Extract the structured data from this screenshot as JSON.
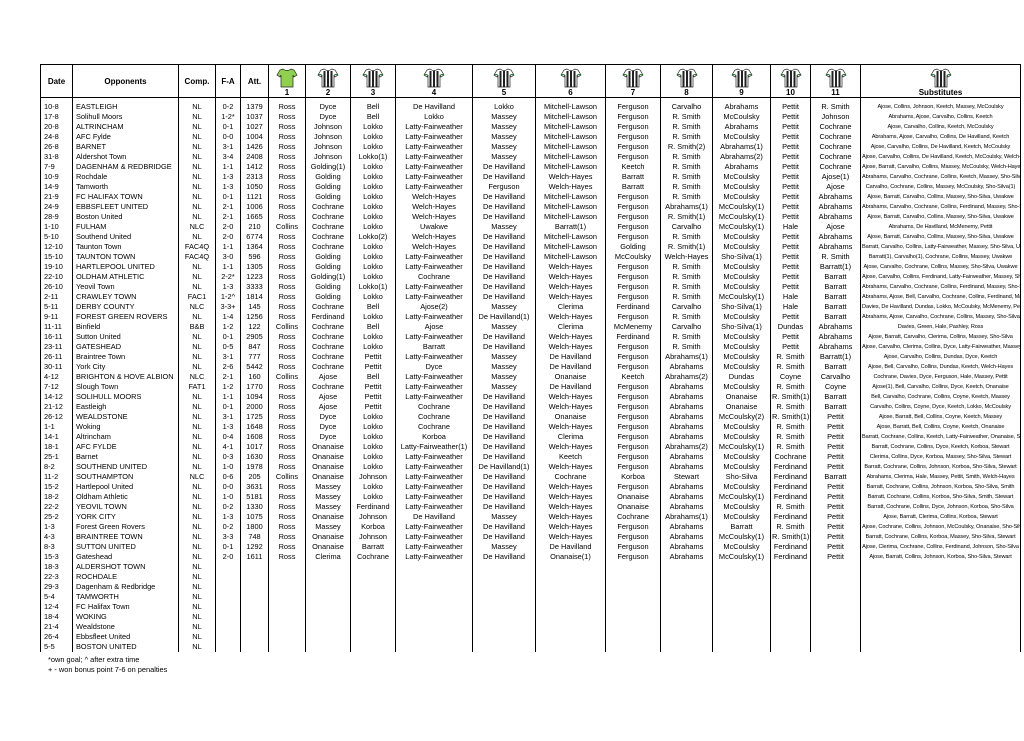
{
  "table": {
    "headers": [
      "Date",
      "Opponents",
      "Comp.",
      "F-A",
      "Att.",
      "1",
      "2",
      "3",
      "4",
      "5",
      "6",
      "7",
      "8",
      "9",
      "10",
      "11",
      "Substitutes"
    ],
    "rows": [
      [
        "10-8",
        "EASTLEIGH",
        "NL",
        "0-2",
        "1379",
        "Ross",
        "Dyce",
        "Bell",
        "De Havilland",
        "Lokko",
        "Mitchell-Lawson",
        "Ferguson",
        "Carvalho",
        "Abrahams",
        "Pettit",
        "R. Smith",
        "Ajose, Collins, Johnson, Keetch, Massey, McCoulsky"
      ],
      [
        "17-8",
        "Solihull Moors",
        "NL",
        "1-2*",
        "1037",
        "Ross",
        "Dyce",
        "Bell",
        "Lokko",
        "Massey",
        "Mitchell-Lawson",
        "Ferguson",
        "R. Smith",
        "McCoulsky",
        "Pettit",
        "Johnson",
        "Abrahams, Ajose, Carvalho, Collins, Keetch"
      ],
      [
        "20-8",
        "ALTRINCHAM",
        "NL",
        "0-1",
        "1027",
        "Ross",
        "Johnson",
        "Lokko",
        "Latty-Fairweather",
        "Massey",
        "Mitchell-Lawson",
        "Ferguson",
        "R. Smith",
        "Abrahams",
        "Pettit",
        "Cochrane",
        "Ajose, Carvalho, Collins, Keetch, McCoulsky"
      ],
      [
        "24-8",
        "AFC Fylde",
        "NL",
        "0-0",
        "1004",
        "Ross",
        "Johnson",
        "Lokko",
        "Latty-Fairweather",
        "Massey",
        "Mitchell-Lawson",
        "Ferguson",
        "R. Smith",
        "McCoulsky",
        "Pettit",
        "Cochrane",
        "Abrahams, Ajose, Carvalho, Collins, De Havilland, Keetch"
      ],
      [
        "26-8",
        "BARNET",
        "NL",
        "3-1",
        "1426",
        "Ross",
        "Johnson",
        "Lokko",
        "Latty-Fairweather",
        "Massey",
        "Mitchell-Lawson",
        "Ferguson",
        "R. Smith(2)",
        "Abrahams(1)",
        "Pettit",
        "Cochrane",
        "Ajose, Carvalho, Collins, De Havilland, Keetch, McCoulsky"
      ],
      [
        "31-8",
        "Aldershot Town",
        "NL",
        "3-4",
        "2408",
        "Ross",
        "Johnson",
        "Lokko(1)",
        "Latty-Fairweather",
        "Massey",
        "Mitchell-Lawson",
        "Ferguson",
        "R. Smith",
        "Abrahams(2)",
        "Pettit",
        "Cochrane",
        "Ajose, Carvalho, Collins, De Havilland, Keetch, McCoulsky, Welch-Hayes"
      ],
      [
        "7-9",
        "DAGENHAM & REDBRIDGE",
        "NL",
        "1-1",
        "1412",
        "Ross",
        "Golding(1)",
        "Lokko",
        "Latty-Fairweather",
        "De Havilland",
        "Mitchell-Lawson",
        "Keetch",
        "R. Smith",
        "Abrahams",
        "Pettit",
        "Cochrane",
        "Ajose, Barratt, Carvalho, Collins, Massey, McCoulsky, Welch-Hayes"
      ],
      [
        "10-9",
        "Rochdale",
        "NL",
        "1-3",
        "2313",
        "Ross",
        "Golding",
        "Lokko",
        "Latty-Fairweather",
        "De Havilland",
        "Welch-Hayes",
        "Barratt",
        "R. Smith",
        "McCoulsky",
        "Pettit",
        "Ajose(1)",
        "Abrahams, Carvalho, Cochrane, Collins, Keetch, Massey, Sho-Silva"
      ],
      [
        "14-9",
        "Tamworth",
        "NL",
        "1-3",
        "1050",
        "Ross",
        "Golding",
        "Lokko",
        "Latty-Fairweather",
        "Ferguson",
        "Welch-Hayes",
        "Barratt",
        "R. Smith",
        "McCoulsky",
        "Pettit",
        "Ajose",
        "Carvalho, Cochrane, Collins, Massey, McCoulsky, Sho-Silva(1)"
      ],
      [
        "21-9",
        "FC HALIFAX TOWN",
        "NL",
        "0-1",
        "1121",
        "Ross",
        "Golding",
        "Lokko",
        "Welch-Hayes",
        "De Havilland",
        "Mitchell-Lawson",
        "Ferguson",
        "R. Smith",
        "McCoulsky",
        "Pettit",
        "Abrahams",
        "Ajose, Barratt, Carvalho, Collins, Massey, Sho-Silva, Uwakwe"
      ],
      [
        "24-9",
        "EBBSFLEET UNITED",
        "NL",
        "2-1",
        "1006",
        "Ross",
        "Cochrane",
        "Lokko",
        "Welch-Hayes",
        "De Havilland",
        "Mitchell-Lawson",
        "Ferguson",
        "Abrahams(1)",
        "McCoulsky(1)",
        "Pettit",
        "Abrahams",
        "Abrahams, Carvalho, Cochrane, Collins, Ferdinand, Massey, Sho-Silva"
      ],
      [
        "28-9",
        "Boston United",
        "NL",
        "2-1",
        "1665",
        "Ross",
        "Cochrane",
        "Lokko",
        "Welch-Hayes",
        "De Havilland",
        "Mitchell-Lawson",
        "Ferguson",
        "R. Smith(1)",
        "McCoulsky(1)",
        "Pettit",
        "Abrahams",
        "Ajose, Barratt, Carvalho, Collins, Massey, Sho-Silva, Uwakwe"
      ],
      [
        "1-10",
        "FULHAM",
        "NLC",
        "2-0",
        "210",
        "Collins",
        "Cochrane",
        "Lokko",
        "Uwakwe",
        "Massey",
        "Barratt(1)",
        "Ferguson",
        "Carvalho",
        "McCoulsky(1)",
        "Hale",
        "Ajose",
        "Abrahams, De Havilland, McMenemy, Pettit"
      ],
      [
        "5-10",
        "Southend United",
        "NL",
        "2-0",
        "6774",
        "Ross",
        "Cochrane",
        "Lokko(2)",
        "Welch-Hayes",
        "De Havilland",
        "Mitchell-Lawson",
        "Ferguson",
        "R. Smith",
        "McCoulsky",
        "Pettit",
        "Abrahams",
        "Ajose, Barratt, Carvalho, Collins, Massey, Sho-Silva, Uwakwe"
      ],
      [
        "12-10",
        "Taunton Town",
        "FAC4Q",
        "1-1",
        "1364",
        "Ross",
        "Cochrane",
        "Lokko",
        "Welch-Hayes",
        "De Havilland",
        "Mitchell-Lawson",
        "Golding",
        "R. Smith(1)",
        "McCoulsky",
        "Pettit",
        "Abrahams",
        "Barratt, Carvalho, Collins, Latty-Fairweather, Massey, Sho-Silva, Uwakwe"
      ],
      [
        "15-10",
        "TAUNTON TOWN",
        "FAC4Q",
        "3-0",
        "596",
        "Ross",
        "Golding",
        "Lokko",
        "Latty-Fairweather",
        "De Havilland",
        "Mitchell-Lawson",
        "McCoulsky",
        "Welch-Hayes",
        "Sho-Silva(1)",
        "Pettit",
        "R. Smith",
        "Barratt(1), Carvalho(1), Cochrane, Collins, Massey, Uwakwe"
      ],
      [
        "19-10",
        "HARTLEPOOL UNITED",
        "NL",
        "1-1",
        "1305",
        "Ross",
        "Golding",
        "Lokko",
        "Latty-Fairweather",
        "De Havilland",
        "Welch-Hayes",
        "Ferguson",
        "R. Smith",
        "McCoulsky",
        "Pettit",
        "Barratt(1)",
        "Ajose, Carvalho, Cochrane, Collins, Massey, Sho-Silva, Uwakwe"
      ],
      [
        "22-10",
        "OLDHAM ATHLETIC",
        "NL",
        "2-2*",
        "1223",
        "Ross",
        "Golding(1)",
        "Lokko",
        "Cochrane",
        "De Havilland",
        "Welch-Hayes",
        "Ferguson",
        "R. Smith",
        "McCoulsky",
        "Pettit",
        "Barratt",
        "Ajose, Carvalho, Collins, Ferdinand, Latty-Fairweather, Massey, Sho-Silva"
      ],
      [
        "26-10",
        "Yeovil Town",
        "NL",
        "1-3",
        "3333",
        "Ross",
        "Golding",
        "Lokko(1)",
        "Latty-Fairweather",
        "De Havilland",
        "Welch-Hayes",
        "Ferguson",
        "R. Smith",
        "McCoulsky",
        "Pettit",
        "Barratt",
        "Abrahams, Carvalho, Cochrane, Collins, Ferdinand, Massey, Sho-Silva"
      ],
      [
        "2-11",
        "CRAWLEY TOWN",
        "FAC1",
        "1-2^",
        "1814",
        "Ross",
        "Golding",
        "Lokko",
        "Latty-Fairweather",
        "De Havilland",
        "Welch-Hayes",
        "Ferguson",
        "R. Smith",
        "McCoulsky(1)",
        "Hale",
        "Barratt",
        "Abrahams, Ajose, Bell, Carvalho, Cochrane, Collins, Ferdinand, Massey, Sho-Silva"
      ],
      [
        "5-11",
        "DERBY COUNTY",
        "NLC",
        "3-3+",
        "145",
        "Ross",
        "Cochrane",
        "Bell",
        "Ajose(2)",
        "Massey",
        "Clerima",
        "Ferdinand",
        "Carvalho",
        "Sho-Silva(1)",
        "Hale",
        "Barratt",
        "Davies, De Havilland, Dundas, Lokko, McCoulsky, McMenemy, Pettit"
      ],
      [
        "9-11",
        "FOREST GREEN ROVERS",
        "NL",
        "1-4",
        "1256",
        "Ross",
        "Ferdinand",
        "Lokko",
        "Latty-Fairweather",
        "De Havilland(1)",
        "Welch-Hayes",
        "Ferguson",
        "R. Smith",
        "McCoulsky",
        "Pettit",
        "Barratt",
        "Abrahams, Ajose, Carvalho, Cochrane, Collins, Massey, Sho-Silva"
      ],
      [
        "11-11",
        "Binfield",
        "B&B",
        "1-2",
        "122",
        "Collins",
        "Cochrane",
        "Bell",
        "Ajose",
        "Massey",
        "Clerima",
        "McMenemy",
        "Carvalho",
        "Sho-Silva(1)",
        "Dundas",
        "Abrahams",
        "Davies, Green, Hale, Pashley, Ross"
      ],
      [
        "16-11",
        "Sutton United",
        "NL",
        "0-1",
        "2905",
        "Ross",
        "Cochrane",
        "Lokko",
        "Latty-Fairweather",
        "De Havilland",
        "Welch-Hayes",
        "Ferdinand",
        "R. Smith",
        "McCoulsky",
        "Pettit",
        "Abrahams",
        "Ajose, Barratt, Carvalho, Clerima, Collins, Massey, Sho-Silva"
      ],
      [
        "23-11",
        "GATESHEAD",
        "NL",
        "0-5",
        "847",
        "Ross",
        "Cochrane",
        "Lokko",
        "Barratt",
        "De Havilland",
        "Welch-Hayes",
        "Ferguson",
        "R. Smith",
        "McCoulsky",
        "Pettit",
        "Abrahams",
        "Ajose, Carvalho, Clerima, Collins, Dyce, Latty-Fairweather, Massey, Sho-Silva"
      ],
      [
        "26-11",
        "Braintree Town",
        "NL",
        "3-1",
        "777",
        "Ross",
        "Cochrane",
        "Pettit",
        "Latty-Fairweather",
        "Massey",
        "De Havilland",
        "Ferguson",
        "Abrahams(1)",
        "McCoulsky",
        "R. Smith",
        "Barratt(1)",
        "Ajose, Carvalho, Collins, Dundas, Dyce, Keetch"
      ],
      [
        "30-11",
        "York City",
        "NL",
        "2-6",
        "5442",
        "Ross",
        "Cochrane",
        "Pettit",
        "Dyce",
        "Massey",
        "De Havilland",
        "Ferguson",
        "Abrahams",
        "McCoulsky",
        "R. Smith",
        "Barratt",
        "Ajose, Bell, Carvalho, Collins, Dundas, Keetch, Welch-Hayes"
      ],
      [
        "4-12",
        "BRIGHTON & HOVE ALBION",
        "NLC",
        "2-1",
        "160",
        "Collins",
        "Ajose",
        "Bell",
        "Latty-Fairweather",
        "Massey",
        "Onanaise",
        "Keetch",
        "Abrahams(2)",
        "Dundas",
        "Coyne",
        "Carvalho",
        "Cochrane, Davies, Dyce, Ferguson, Hale, Massey, Pettit"
      ],
      [
        "7-12",
        "Slough Town",
        "FAT1",
        "1-2",
        "1770",
        "Ross",
        "Cochrane",
        "Pettit",
        "Latty-Fairweather",
        "Massey",
        "De Havilland",
        "Ferguson",
        "Abrahams",
        "McCoulsky",
        "R. Smith",
        "Coyne",
        "Ajose(1), Bell, Carvalho, Collins, Dyce, Keetch, Onanaise"
      ],
      [
        "14-12",
        "SOLIHULL MOORS",
        "NL",
        "1-1",
        "1094",
        "Ross",
        "Ajose",
        "Pettit",
        "Latty-Fairweather",
        "De Havilland",
        "Welch-Hayes",
        "Ferguson",
        "Abrahams",
        "Onanaise",
        "R. Smith(1)",
        "Barratt",
        "Bell, Carvalho, Cochrane, Collins, Coyne, Keetch, Massey"
      ],
      [
        "21-12",
        "Eastleigh",
        "NL",
        "0-1",
        "2000",
        "Ross",
        "Ajose",
        "Pettit",
        "Cochrane",
        "De Havilland",
        "Welch-Hayes",
        "Ferguson",
        "Abrahams",
        "Onanaise",
        "R. Smith",
        "Barratt",
        "Carvalho, Collins, Coyne, Dyce, Keetch, Lokko, McCoulsky"
      ],
      [
        "26-12",
        "WEALDSTONE",
        "NL",
        "3-1",
        "1725",
        "Ross",
        "Dyce",
        "Lokko",
        "Cochrane",
        "De Havilland",
        "Onanaise",
        "Ferguson",
        "Abrahams",
        "McCoulsky(2)",
        "R. Smith(1)",
        "Pettit",
        "Ajose, Barratt, Bell, Collins, Coyne, Keetch, Massey"
      ],
      [
        "1-1",
        "Woking",
        "NL",
        "1-3",
        "1648",
        "Ross",
        "Dyce",
        "Lokko",
        "Cochrane",
        "De Havilland",
        "Welch-Hayes",
        "Ferguson",
        "Abrahams",
        "McCoulsky",
        "R. Smith",
        "Pettit",
        "Ajose, Barratt, Bell, Collins, Coyne, Keetch, Onanaise"
      ],
      [
        "14-1",
        "Altrincham",
        "NL",
        "0-4",
        "1608",
        "Ross",
        "Dyce",
        "Lokko",
        "Korboa",
        "De Havilland",
        "Clerima",
        "Ferguson",
        "Abrahams",
        "McCoulsky",
        "R. Smith",
        "Pettit",
        "Barratt, Cochrane, Collins, Keetch, Latty-Fairweather, Onanaise, Stewart"
      ],
      [
        "18-1",
        "AFC FYLDE",
        "NL",
        "4-1",
        "1017",
        "Ross",
        "Onanaise",
        "Lokko",
        "Latty-Fairweather(1)",
        "De Havilland",
        "Welch-Hayes",
        "Ferguson",
        "Abrahams(2)",
        "McCoulsky(1)",
        "R. Smith",
        "Pettit",
        "Barratt, Cochrane, Collins, Dyce, Keetch, Korboa, Stewart"
      ],
      [
        "25-1",
        "Barnet",
        "NL",
        "0-3",
        "1630",
        "Ross",
        "Onanaise",
        "Lokko",
        "Latty-Fairweather",
        "De Havilland",
        "Keetch",
        "Ferguson",
        "Abrahams",
        "McCoulsky",
        "Cochrane",
        "Pettit",
        "Clerima, Collins, Dyce, Korboa, Massey, Sho-Silva, Stewart"
      ],
      [
        "8-2",
        "SOUTHEND UNITED",
        "NL",
        "1-0",
        "1978",
        "Ross",
        "Onanaise",
        "Lokko",
        "Latty-Fairweather",
        "De Havilland(1)",
        "Welch-Hayes",
        "Ferguson",
        "Abrahams",
        "McCoulsky",
        "Ferdinand",
        "Pettit",
        "Barratt, Cochrane, Collins, Johnson, Korboa, Sho-Silva, Stewart"
      ],
      [
        "11-2",
        "SOUTHAMPTON",
        "NLC",
        "0-6",
        "205",
        "Collins",
        "Onanaise",
        "Johnson",
        "Latty-Fairweather",
        "De Havilland",
        "Cochrane",
        "Korboa",
        "Stewart",
        "Sho-Silva",
        "Ferdinand",
        "Barratt",
        "Abrahams, Clerima, Hale, Massey, Pettit, Smith, Welch-Hayes"
      ],
      [
        "15-2",
        "Hartlepool United",
        "NL",
        "0-0",
        "3631",
        "Ross",
        "Massey",
        "Lokko",
        "Latty-Fairweather",
        "De Havilland",
        "Welch-Hayes",
        "Ferguson",
        "Abrahams",
        "McCoulsky",
        "Ferdinand",
        "Pettit",
        "Barratt, Cochrane, Collins, Johnson, Korboa, Sho-Silva, Smith"
      ],
      [
        "18-2",
        "Oldham Athletic",
        "NL",
        "1-0",
        "5181",
        "Ross",
        "Massey",
        "Lokko",
        "Latty-Fairweather",
        "De Havilland",
        "Welch-Hayes",
        "Onanaise",
        "Abrahams",
        "McCoulsky(1)",
        "Ferdinand",
        "Pettit",
        "Barratt, Cochrane, Collins, Korboa, Sho-Silva, Smith, Stewart"
      ],
      [
        "22-2",
        "YEOVIL TOWN",
        "NL",
        "0-2",
        "1330",
        "Ross",
        "Massey",
        "Ferdinand",
        "Latty-Fairweather",
        "De Havilland",
        "Welch-Hayes",
        "Onanaise",
        "Abrahams",
        "McCoulsky",
        "R. Smith",
        "Pettit",
        "Barratt, Cochrane, Collins, Dyce, Johnson, Korboa, Sho-Silva"
      ],
      [
        "25-2",
        "YORK CITY",
        "NL",
        "1-3",
        "1075",
        "Ross",
        "Onanaise",
        "Johnson",
        "De Havilland",
        "Massey",
        "Welch-Hayes",
        "Cochrane",
        "Abrahams(1)",
        "McCoulsky",
        "Ferdinand",
        "Pettit",
        "Ajose, Barratt, Clerima, Collins, Korboa, Stewart"
      ],
      [
        "1-3",
        "Forest Green Rovers",
        "NL",
        "0-2",
        "1800",
        "Ross",
        "Massey",
        "Korboa",
        "Latty-Fairweather",
        "De Havilland",
        "Welch-Hayes",
        "Ferguson",
        "Abrahams",
        "Barratt",
        "R. Smith",
        "Pettit",
        "Ajose, Cochrane, Collins, Johnson, McCoulsky, Onanaise, Sho-Silva"
      ],
      [
        "4-3",
        "BRAINTREE TOWN",
        "NL",
        "3-3",
        "748",
        "Ross",
        "Onanaise",
        "Johnson",
        "Latty-Fairweather",
        "De Havilland",
        "Welch-Hayes",
        "Ferguson",
        "Abrahams",
        "McCoulsky(1)",
        "R. Smith(1)",
        "Pettit",
        "Barratt, Cochrane, Collins, Korboa, Massey, Sho-Silva, Stewart"
      ],
      [
        "8-3",
        "SUTTON UNITED",
        "NL",
        "0-1",
        "1292",
        "Ross",
        "Onanaise",
        "Barratt",
        "Latty-Fairweather",
        "Massey",
        "De Havilland",
        "Ferguson",
        "Abrahams",
        "McCoulsky",
        "Ferdinand",
        "Pettit",
        "Ajose, Clerima, Cochrane, Collins, Ferdinand, Johnson, Sho-Silva"
      ],
      [
        "15-3",
        "Gateshead",
        "NL",
        "2-0",
        "1611",
        "Ross",
        "Clerima",
        "Cochrane",
        "Latty-Fairweather",
        "De Havilland",
        "Onanaise(1)",
        "Ferguson",
        "Abrahams",
        "McCoulsky(1)",
        "Ferdinand",
        "Pettit",
        "Ajose, Barratt, Collins, Johnson, Korboa, Sho-Silva, Stewart"
      ],
      [
        "18-3",
        "ALDERSHOT TOWN",
        "NL"
      ],
      [
        "22-3",
        "ROCHDALE",
        "NL"
      ],
      [
        "29-3",
        "Dagenham & Redbridge",
        "NL"
      ],
      [
        "5-4",
        "TAMWORTH",
        "NL"
      ],
      [
        "12-4",
        "FC Halifax Town",
        "NL"
      ],
      [
        "18-4",
        "WOKING",
        "NL"
      ],
      [
        "21-4",
        "Wealdstone",
        "NL"
      ],
      [
        "26-4",
        "Ebbsfleet United",
        "NL"
      ],
      [
        "5-5",
        "BOSTON UNITED",
        "NL"
      ]
    ]
  },
  "footnotes": [
    "*own goal; ^ after extra time",
    "+ - won bonus point 7-6 on penalties"
  ]
}
